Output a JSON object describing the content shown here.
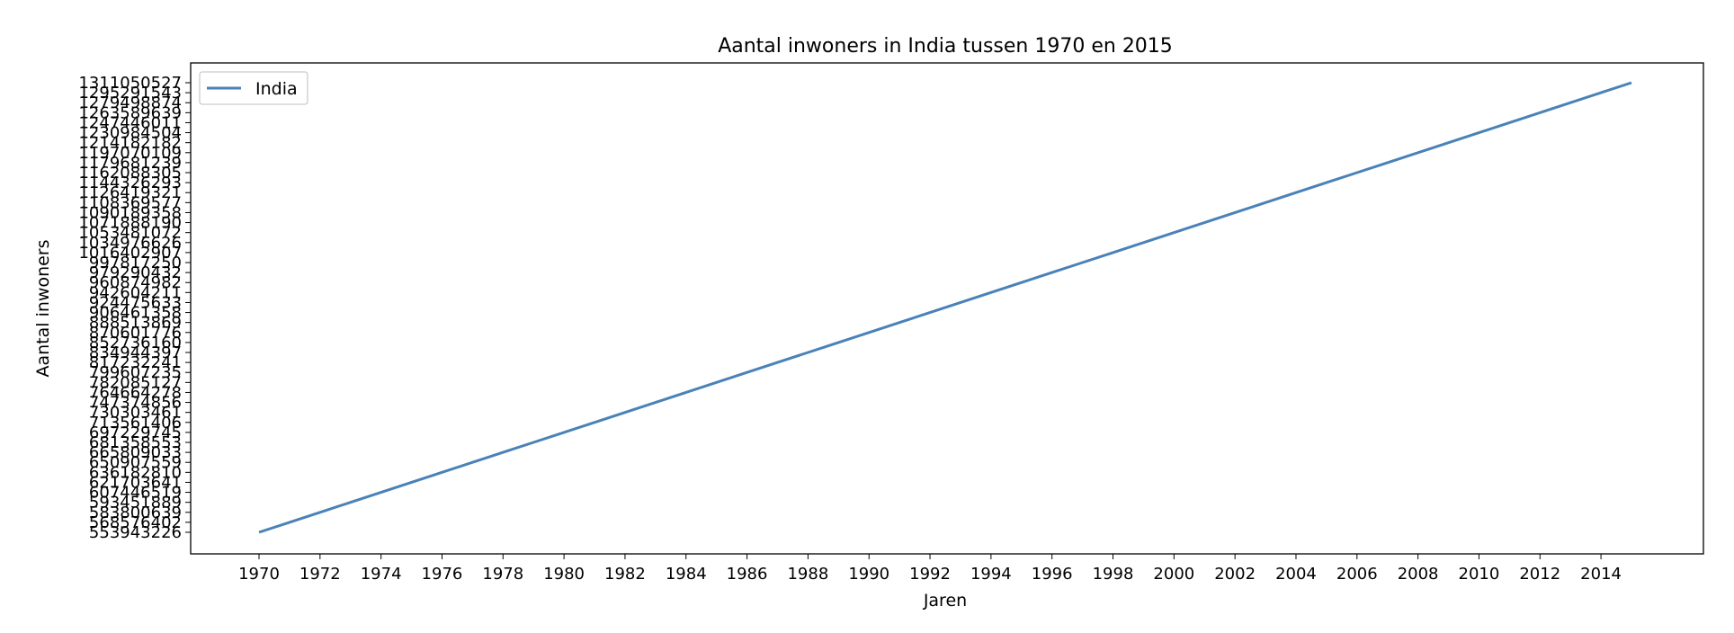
{
  "chart_data": {
    "type": "line",
    "title": "Aantal inwoners in India tussen 1970 en 2015",
    "xlabel": "Jaren",
    "ylabel": "Aantal inwoners",
    "x_ticks": [
      "1970",
      "1972",
      "1974",
      "1976",
      "1978",
      "1980",
      "1982",
      "1984",
      "1986",
      "1988",
      "1990",
      "1992",
      "1994",
      "1996",
      "1998",
      "2000",
      "2002",
      "2004",
      "2006",
      "2008",
      "2010",
      "2012",
      "2014"
    ],
    "y_ticks": [
      "553943226",
      "568576402",
      "583800639",
      "593451889",
      "607446519",
      "621703641",
      "636182810",
      "650907559",
      "665809033",
      "681358553",
      "697229745",
      "713561406",
      "730303461",
      "747374856",
      "764664278",
      "782085127",
      "799607235",
      "817232241",
      "834944397",
      "852736160",
      "870601776",
      "888513869",
      "906461358",
      "924475633",
      "942604211",
      "960874982",
      "979290432",
      "997817250",
      "1016402907",
      "1034976626",
      "1053481072",
      "1071888190",
      "1090189358",
      "1108369577",
      "1126419321",
      "1144326293",
      "1162088305",
      "1179681239",
      "1197070109",
      "1214182182",
      "1230984504",
      "1247446011",
      "1263589639",
      "1279498874",
      "1295291543",
      "1311050527"
    ],
    "series": [
      {
        "name": "India",
        "color": "#4a82b8",
        "x": [
          1970,
          1971,
          1972,
          1973,
          1974,
          1975,
          1976,
          1977,
          1978,
          1979,
          1980,
          1981,
          1982,
          1983,
          1984,
          1985,
          1986,
          1987,
          1988,
          1989,
          1990,
          1991,
          1992,
          1993,
          1994,
          1995,
          1996,
          1997,
          1998,
          1999,
          2000,
          2001,
          2002,
          2003,
          2004,
          2005,
          2006,
          2007,
          2008,
          2009,
          2010,
          2011,
          2012,
          2013,
          2014,
          2015
        ],
        "y": [
          "553943226",
          "568576402",
          "583800639",
          "593451889",
          "607446519",
          "621703641",
          "636182810",
          "650907559",
          "665809033",
          "681358553",
          "697229745",
          "713561406",
          "730303461",
          "747374856",
          "764664278",
          "782085127",
          "799607235",
          "817232241",
          "834944397",
          "852736160",
          "870601776",
          "888513869",
          "906461358",
          "924475633",
          "942604211",
          "960874982",
          "979290432",
          "997817250",
          "1016402907",
          "1034976626",
          "1053481072",
          "1071888190",
          "1090189358",
          "1108369577",
          "1126419321",
          "1144326293",
          "1162088305",
          "1179681239",
          "1197070109",
          "1214182182",
          "1230984504",
          "1247446011",
          "1263589639",
          "1279498874",
          "1295291543",
          "1311050527"
        ]
      }
    ],
    "legend_position": "top-left",
    "grid": false
  }
}
